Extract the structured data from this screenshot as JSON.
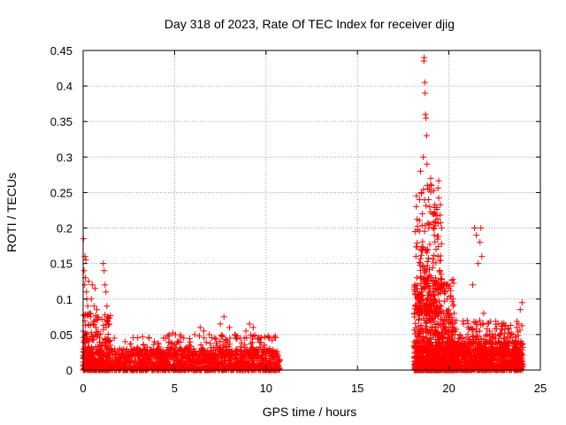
{
  "chart_data": {
    "type": "scatter",
    "title": "Day 318 of 2023, Rate Of TEC Index for receiver djig",
    "xlabel": "GPS time / hours",
    "ylabel": "ROTI / TECUs",
    "xlim": [
      0,
      25
    ],
    "ylim": [
      0,
      0.45
    ],
    "grid": true,
    "marker": "+",
    "color": "#ff0000",
    "x_ticks": [
      0,
      5,
      10,
      15,
      20,
      25
    ],
    "x_tick_labels": [
      "0",
      "5",
      "10",
      "15",
      "20",
      "25"
    ],
    "y_ticks": [
      0,
      0.05,
      0.1,
      0.15,
      0.2,
      0.25,
      0.3,
      0.35,
      0.4,
      0.45
    ],
    "y_tick_labels": [
      "0",
      "0.05",
      "0.1",
      "0.15",
      "0.2",
      "0.25",
      "0.3",
      "0.35",
      "0.4",
      "0.45"
    ],
    "series": [
      {
        "name": "ROTI",
        "points": [
          [
            0.02,
            0.185
          ],
          [
            0.05,
            0.14
          ],
          [
            0.08,
            0.12
          ],
          [
            0.1,
            0.16
          ],
          [
            0.12,
            0.13
          ],
          [
            0.15,
            0.155
          ],
          [
            0.18,
            0.11
          ],
          [
            0.2,
            0.1
          ],
          [
            0.25,
            0.09
          ],
          [
            0.3,
            0.125
          ],
          [
            0.35,
            0.08
          ],
          [
            0.4,
            0.075
          ],
          [
            0.45,
            0.1
          ],
          [
            0.5,
            0.12
          ],
          [
            0.55,
            0.065
          ],
          [
            0.6,
            0.09
          ],
          [
            0.65,
            0.115
          ],
          [
            0.7,
            0.06
          ],
          [
            0.75,
            0.085
          ],
          [
            0.8,
            0.05
          ],
          [
            0.9,
            0.045
          ],
          [
            1.0,
            0.035
          ],
          [
            1.1,
            0.15
          ],
          [
            1.15,
            0.14
          ],
          [
            1.2,
            0.12
          ],
          [
            1.25,
            0.11
          ],
          [
            1.3,
            0.09
          ],
          [
            1.4,
            0.04
          ],
          [
            1.5,
            0.035
          ],
          [
            1.7,
            0.045
          ],
          [
            2.0,
            0.03
          ],
          [
            2.3,
            0.04
          ],
          [
            2.6,
            0.037
          ],
          [
            3.0,
            0.03
          ],
          [
            3.3,
            0.035
          ],
          [
            3.6,
            0.045
          ],
          [
            3.9,
            0.04
          ],
          [
            4.1,
            0.038
          ],
          [
            4.4,
            0.045
          ],
          [
            4.7,
            0.05
          ],
          [
            4.9,
            0.052
          ],
          [
            5.2,
            0.04
          ],
          [
            5.5,
            0.045
          ],
          [
            5.8,
            0.035
          ],
          [
            6.1,
            0.05
          ],
          [
            6.4,
            0.06
          ],
          [
            6.6,
            0.055
          ],
          [
            6.9,
            0.05
          ],
          [
            7.2,
            0.045
          ],
          [
            7.5,
            0.065
          ],
          [
            7.7,
            0.075
          ],
          [
            8.0,
            0.06
          ],
          [
            8.3,
            0.05
          ],
          [
            8.6,
            0.045
          ],
          [
            8.9,
            0.055
          ],
          [
            9.1,
            0.065
          ],
          [
            9.3,
            0.06
          ],
          [
            9.6,
            0.045
          ],
          [
            9.9,
            0.035
          ],
          [
            10.2,
            0.03
          ],
          [
            10.5,
            0.025
          ],
          [
            10.7,
            0.015
          ],
          [
            18.15,
            0.195
          ],
          [
            18.2,
            0.16
          ],
          [
            18.25,
            0.13
          ],
          [
            18.3,
            0.1
          ],
          [
            18.35,
            0.07
          ],
          [
            18.4,
            0.24
          ],
          [
            18.45,
            0.28
          ],
          [
            18.5,
            0.25
          ],
          [
            18.55,
            0.22
          ],
          [
            18.6,
            0.3
          ],
          [
            18.63,
            0.435
          ],
          [
            18.65,
            0.44
          ],
          [
            18.68,
            0.405
          ],
          [
            18.7,
            0.39
          ],
          [
            18.72,
            0.36
          ],
          [
            18.75,
            0.355
          ],
          [
            18.78,
            0.33
          ],
          [
            18.8,
            0.29
          ],
          [
            18.82,
            0.26
          ],
          [
            18.85,
            0.255
          ],
          [
            18.88,
            0.24
          ],
          [
            18.9,
            0.2
          ],
          [
            18.95,
            0.23
          ],
          [
            19.0,
            0.27
          ],
          [
            19.05,
            0.26
          ],
          [
            19.1,
            0.22
          ],
          [
            19.15,
            0.2
          ],
          [
            19.2,
            0.19
          ],
          [
            19.3,
            0.17
          ],
          [
            19.4,
            0.16
          ],
          [
            19.5,
            0.14
          ],
          [
            19.6,
            0.2
          ],
          [
            19.7,
            0.12
          ],
          [
            19.8,
            0.11
          ],
          [
            19.9,
            0.1
          ],
          [
            20.0,
            0.085
          ],
          [
            20.2,
            0.065
          ],
          [
            20.4,
            0.07
          ],
          [
            20.6,
            0.05
          ],
          [
            20.8,
            0.065
          ],
          [
            21.0,
            0.07
          ],
          [
            21.2,
            0.06
          ],
          [
            21.3,
            0.12
          ],
          [
            21.4,
            0.2
          ],
          [
            21.5,
            0.19
          ],
          [
            21.6,
            0.15
          ],
          [
            21.7,
            0.18
          ],
          [
            21.75,
            0.2
          ],
          [
            21.8,
            0.16
          ],
          [
            21.9,
            0.08
          ],
          [
            22.1,
            0.05
          ],
          [
            22.4,
            0.045
          ],
          [
            22.7,
            0.04
          ],
          [
            23.0,
            0.045
          ],
          [
            23.3,
            0.04
          ],
          [
            23.5,
            0.05
          ],
          [
            23.7,
            0.06
          ],
          [
            23.8,
            0.065
          ],
          [
            23.9,
            0.085
          ],
          [
            24.0,
            0.095
          ]
        ],
        "dense_bands": [
          {
            "x": [
              0,
              10.75
            ],
            "y": [
              0,
              0.03
            ],
            "count": 1400
          },
          {
            "x": [
              0,
              1.5
            ],
            "y": [
              0,
              0.08
            ],
            "count": 260
          },
          {
            "x": [
              2.5,
              10.6
            ],
            "y": [
              0.02,
              0.05
            ],
            "count": 260
          },
          {
            "x": [
              18.1,
              24.05
            ],
            "y": [
              0,
              0.04
            ],
            "count": 1200
          },
          {
            "x": [
              18.1,
              20.3
            ],
            "y": [
              0,
              0.13
            ],
            "count": 650
          },
          {
            "x": [
              18.2,
              19.6
            ],
            "y": [
              0.08,
              0.27
            ],
            "count": 200
          },
          {
            "x": [
              20.0,
              24.0
            ],
            "y": [
              0.02,
              0.07
            ],
            "count": 260
          }
        ]
      }
    ]
  }
}
